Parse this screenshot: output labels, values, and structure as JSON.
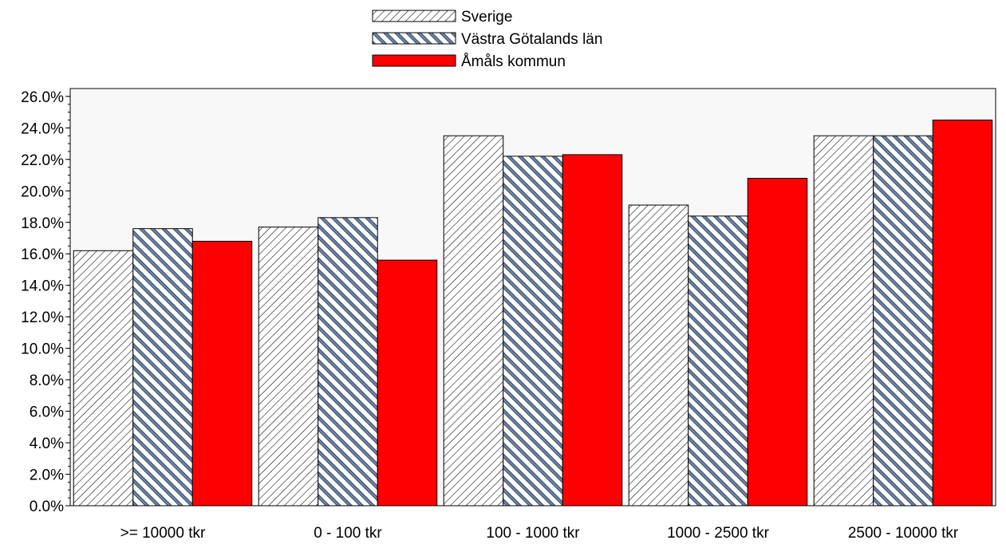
{
  "chart_data": {
    "type": "bar",
    "title": "",
    "xlabel": "",
    "ylabel": "",
    "categories": [
      ">= 10000 tkr",
      "0 - 100 tkr",
      "100 - 1000 tkr",
      "1000 - 2500 tkr",
      "2500 - 10000 tkr"
    ],
    "series": [
      {
        "name": "Sverige",
        "values": [
          16.2,
          17.7,
          23.5,
          19.1,
          23.5
        ],
        "pattern": "diag-back",
        "color": "#ffffff",
        "stroke": "#000000"
      },
      {
        "name": "Västra Götalands län",
        "values": [
          17.6,
          18.3,
          22.2,
          18.4,
          23.5
        ],
        "pattern": "diag-fwd-blue",
        "color": "#4a5f7d",
        "stroke": "#000000"
      },
      {
        "name": "Åmåls kommun",
        "values": [
          16.8,
          15.6,
          22.3,
          20.8,
          24.5
        ],
        "pattern": "solid",
        "color": "#ff0000",
        "stroke": "#000000"
      }
    ],
    "ylim": [
      0,
      26.5
    ],
    "yticks": [
      0,
      2,
      4,
      6,
      8,
      10,
      12,
      14,
      16,
      18,
      20,
      22,
      24,
      26
    ],
    "ytick_labels": [
      "0.0%",
      "2.0%",
      "4.0%",
      "6.0%",
      "8.0%",
      "10.0%",
      "12.0%",
      "14.0%",
      "16.0%",
      "18.0%",
      "20.0%",
      "22.0%",
      "24.0%",
      "26.0%"
    ],
    "grid": false,
    "legend": "top-center",
    "plot_background": "#f8f8f8"
  }
}
